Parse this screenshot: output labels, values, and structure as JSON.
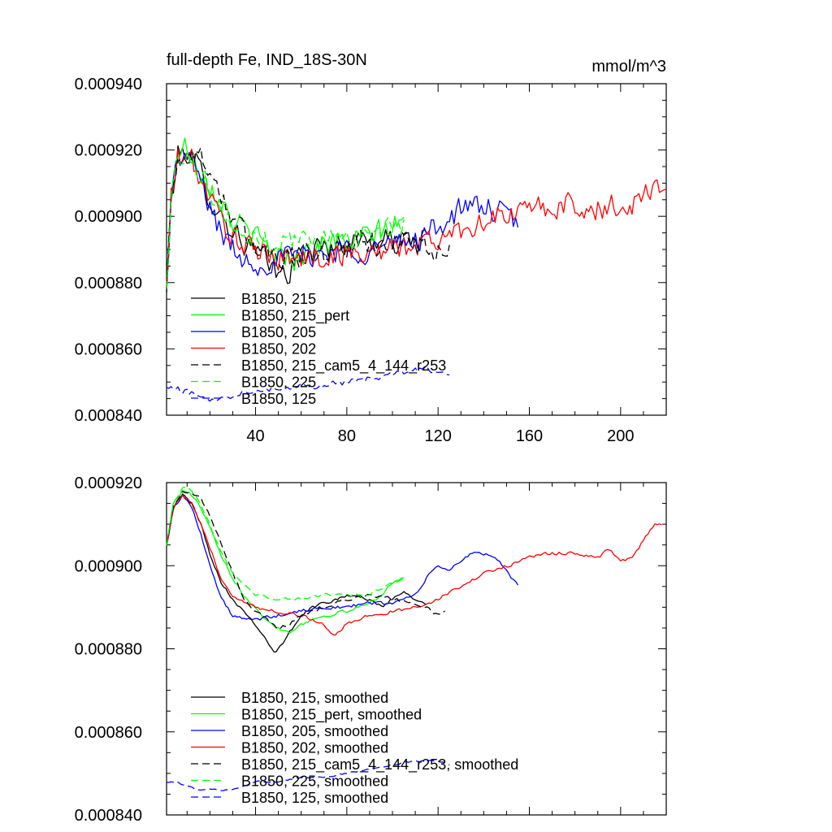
{
  "page": {
    "title": "full-depth Fe, IND_18S-30N",
    "units": "mmol/m^3"
  },
  "chart_data": [
    {
      "type": "line",
      "title": "full-depth Fe, IND_18S-30N",
      "units": "mmol/m^3",
      "xlabel": "",
      "ylabel": "",
      "xlim": [
        1,
        220
      ],
      "ylim": [
        0.00084,
        0.00094
      ],
      "xticks": [
        40,
        80,
        120,
        160,
        200
      ],
      "xtick_labels": [
        "40",
        "80",
        "120",
        "160",
        "200"
      ],
      "yticks": [
        0.00084,
        0.00086,
        0.00088,
        0.0009,
        0.00092,
        0.00094
      ],
      "ytick_labels": [
        "0.000840",
        "0.000860",
        "0.000880",
        "0.000900",
        "0.000920",
        "0.000940"
      ],
      "legend_position": "bottom-left",
      "series": [
        {
          "name": "B1850, 215",
          "color": "#000000",
          "dash": "solid",
          "noise": 3.5e-06,
          "x": [
            1,
            3,
            6,
            9,
            12,
            16,
            20,
            25,
            30,
            35,
            40,
            45,
            50,
            55,
            60,
            70,
            80,
            90,
            100,
            110,
            115
          ],
          "y": [
            0.000876,
            0.000905,
            0.000918,
            0.00092,
            0.000918,
            0.000913,
            0.000906,
            0.0009,
            0.000896,
            0.000892,
            0.000889,
            0.000886,
            0.000882,
            0.000884,
            0.000888,
            0.000891,
            0.000892,
            0.000893,
            0.000892,
            0.000893,
            0.000894
          ]
        },
        {
          "name": "B1850, 215_pert",
          "color": "#00ff00",
          "dash": "solid",
          "noise": 3.5e-06,
          "x": [
            1,
            3,
            6,
            9,
            12,
            16,
            20,
            25,
            30,
            35,
            40,
            45,
            50,
            55,
            60,
            70,
            80,
            90,
            100,
            105
          ],
          "y": [
            0.000877,
            0.000906,
            0.000919,
            0.000921,
            0.000919,
            0.000915,
            0.00091,
            0.000905,
            0.000899,
            0.000896,
            0.000893,
            0.000891,
            0.000889,
            0.000887,
            0.000889,
            0.000892,
            0.000892,
            0.000894,
            0.000897,
            0.000898
          ]
        },
        {
          "name": "B1850, 205",
          "color": "#0000ff",
          "dash": "solid",
          "noise": 3.5e-06,
          "x": [
            1,
            3,
            6,
            9,
            12,
            16,
            20,
            25,
            30,
            35,
            40,
            50,
            60,
            70,
            80,
            90,
            100,
            110,
            120,
            130,
            140,
            150,
            155
          ],
          "y": [
            0.000877,
            0.000906,
            0.000917,
            0.000918,
            0.000916,
            0.000911,
            0.000903,
            0.000895,
            0.00089,
            0.000887,
            0.000886,
            0.000887,
            0.000888,
            0.000889,
            0.00089,
            0.00089,
            0.000891,
            0.000893,
            0.000897,
            0.000902,
            0.000903,
            0.0009,
            0.000897
          ]
        },
        {
          "name": "B1850, 202",
          "color": "#ff0000",
          "dash": "solid",
          "noise": 3.5e-06,
          "x": [
            1,
            3,
            6,
            9,
            12,
            16,
            20,
            25,
            30,
            35,
            40,
            50,
            60,
            70,
            80,
            90,
            100,
            110,
            120,
            130,
            140,
            150,
            160,
            170,
            180,
            190,
            200,
            205,
            210,
            215,
            220
          ],
          "y": [
            0.000877,
            0.000906,
            0.000917,
            0.000918,
            0.000917,
            0.000911,
            0.000905,
            0.000899,
            0.000894,
            0.000891,
            0.000889,
            0.000888,
            0.000887,
            0.000888,
            0.000889,
            0.000889,
            0.00089,
            0.000891,
            0.000893,
            0.000896,
            0.000899,
            0.0009,
            0.000902,
            0.000903,
            0.000903,
            0.000902,
            0.000903,
            0.000904,
            0.000907,
            0.000909,
            0.00091
          ]
        },
        {
          "name": "B1850, 215_cam5_4_144_r253",
          "color": "#000000",
          "dash": "dashed",
          "noise": 3.5e-06,
          "x": [
            1,
            3,
            6,
            9,
            12,
            16,
            20,
            25,
            30,
            35,
            40,
            50,
            60,
            70,
            80,
            90,
            100,
            110,
            115,
            120,
            125
          ],
          "y": [
            0.000877,
            0.000906,
            0.000918,
            0.000919,
            0.000919,
            0.000918,
            0.000914,
            0.000907,
            0.000899,
            0.000894,
            0.000891,
            0.000889,
            0.000888,
            0.000889,
            0.000891,
            0.000892,
            0.000892,
            0.000892,
            0.000891,
            0.000889,
            0.000888
          ]
        },
        {
          "name": "B1850, 225",
          "color": "#00ff00",
          "dash": "dashed",
          "noise": 3e-06,
          "x": [
            1,
            3,
            6,
            9,
            12,
            16,
            20,
            25,
            30,
            35,
            40,
            50,
            60,
            70,
            80,
            90,
            100,
            105
          ],
          "y": [
            0.000877,
            0.000906,
            0.000918,
            0.000919,
            0.000918,
            0.000914,
            0.000908,
            0.000902,
            0.000897,
            0.000894,
            0.000893,
            0.000893,
            0.000893,
            0.000894,
            0.000894,
            0.000894,
            0.000896,
            0.000897
          ]
        },
        {
          "name": "B1850, 125",
          "color": "#0000ff",
          "dash": "dashed",
          "noise": 8e-07,
          "x": [
            1,
            5,
            10,
            15,
            20,
            25,
            30,
            35,
            40,
            50,
            60,
            70,
            80,
            90,
            100,
            110,
            115,
            120,
            125
          ],
          "y": [
            0.000848,
            0.000848,
            0.000847,
            0.000846,
            0.000845,
            0.000845,
            0.000846,
            0.000847,
            0.000848,
            0.000848,
            0.000849,
            0.000849,
            0.00085,
            0.000851,
            0.000852,
            0.000854,
            0.000854,
            0.000853,
            0.000852
          ]
        }
      ]
    },
    {
      "type": "line",
      "title": "",
      "xlabel": "",
      "ylabel": "",
      "xlim": [
        1,
        220
      ],
      "ylim": [
        0.00084,
        0.00092
      ],
      "xticks": [
        40,
        80,
        120,
        160,
        200
      ],
      "xtick_labels": [],
      "yticks": [
        0.00084,
        0.00086,
        0.00088,
        0.0009,
        0.00092
      ],
      "ytick_labels": [
        "0.000840",
        "0.000860",
        "0.000880",
        "0.000900",
        "0.000920"
      ],
      "legend_position": "bottom-left",
      "series": [
        {
          "name": "B1850, 215, smoothed",
          "color": "#000000",
          "dash": "solid",
          "noise": 4e-07,
          "x": [
            1,
            4,
            8,
            12,
            16,
            20,
            25,
            30,
            35,
            40,
            45,
            48,
            52,
            55,
            60,
            65,
            70,
            80,
            90,
            95,
            100,
            105,
            110,
            115
          ],
          "y": [
            0.000905,
            0.000914,
            0.000917,
            0.000915,
            0.00091,
            0.000903,
            0.000896,
            0.000892,
            0.000889,
            0.000886,
            0.000882,
            0.000879,
            0.000881,
            0.000884,
            0.000888,
            0.00089,
            0.000891,
            0.000893,
            0.000892,
            0.00089,
            0.000892,
            0.000894,
            0.000892,
            0.000891
          ]
        },
        {
          "name": "B1850, 215_pert, smoothed",
          "color": "#00ff00",
          "dash": "solid",
          "noise": 4e-07,
          "x": [
            1,
            4,
            8,
            12,
            16,
            20,
            25,
            30,
            35,
            40,
            45,
            50,
            55,
            60,
            65,
            70,
            80,
            90,
            95,
            100,
            105
          ],
          "y": [
            0.000905,
            0.000915,
            0.000918,
            0.000917,
            0.000914,
            0.000909,
            0.000902,
            0.000897,
            0.000893,
            0.00089,
            0.000887,
            0.000885,
            0.000884,
            0.000886,
            0.000887,
            0.000888,
            0.000889,
            0.000891,
            0.000893,
            0.000896,
            0.000897
          ]
        },
        {
          "name": "B1850, 205, smoothed",
          "color": "#0000ff",
          "dash": "solid",
          "noise": 4e-07,
          "x": [
            1,
            4,
            8,
            12,
            16,
            20,
            25,
            30,
            35,
            40,
            50,
            60,
            70,
            80,
            90,
            100,
            110,
            115,
            120,
            125,
            130,
            135,
            140,
            145,
            150,
            155
          ],
          "y": [
            0.000905,
            0.000914,
            0.000917,
            0.000914,
            0.000908,
            0.0009,
            0.000892,
            0.000888,
            0.000887,
            0.000887,
            0.000888,
            0.000889,
            0.00089,
            0.00089,
            0.000891,
            0.000891,
            0.000893,
            0.000897,
            0.0009,
            0.000899,
            0.000901,
            0.000903,
            0.000903,
            0.000902,
            0.000899,
            0.000895
          ]
        },
        {
          "name": "B1850, 202, smoothed",
          "color": "#ff0000",
          "dash": "solid",
          "noise": 4e-07,
          "x": [
            1,
            4,
            8,
            12,
            16,
            20,
            25,
            30,
            35,
            40,
            50,
            60,
            70,
            75,
            80,
            90,
            100,
            110,
            120,
            130,
            140,
            150,
            160,
            170,
            180,
            190,
            195,
            200,
            205,
            210,
            215,
            218
          ],
          "y": [
            0.000905,
            0.000914,
            0.000917,
            0.000915,
            0.00091,
            0.000904,
            0.000897,
            0.000893,
            0.000891,
            0.00089,
            0.000889,
            0.000888,
            0.000886,
            0.000883,
            0.000886,
            0.000888,
            0.000889,
            0.00089,
            0.000892,
            0.000895,
            0.000898,
            0.0009,
            0.000902,
            0.000903,
            0.000903,
            0.000902,
            0.000904,
            0.000901,
            0.000902,
            0.000906,
            0.00091,
            0.00091
          ]
        },
        {
          "name": "B1850, 215_cam5_4_144_r253, smoothed",
          "color": "#000000",
          "dash": "dashed",
          "noise": 4e-07,
          "x": [
            1,
            4,
            8,
            12,
            16,
            20,
            25,
            30,
            35,
            40,
            45,
            50,
            55,
            60,
            65,
            70,
            80,
            90,
            100,
            110,
            115,
            120,
            123
          ],
          "y": [
            0.000905,
            0.000914,
            0.000918,
            0.000918,
            0.000916,
            0.000912,
            0.000905,
            0.000898,
            0.000892,
            0.000889,
            0.000887,
            0.000885,
            0.000886,
            0.000888,
            0.000889,
            0.00089,
            0.000892,
            0.000893,
            0.000892,
            0.000891,
            0.00089,
            0.000888,
            0.000889
          ]
        },
        {
          "name": "B1850, 225, smoothed",
          "color": "#00ff00",
          "dash": "dashed",
          "noise": 3e-07,
          "x": [
            1,
            4,
            8,
            12,
            16,
            20,
            25,
            30,
            35,
            40,
            50,
            60,
            70,
            80,
            90,
            100,
            105
          ],
          "y": [
            0.000905,
            0.000915,
            0.000919,
            0.000918,
            0.000915,
            0.00091,
            0.000903,
            0.000898,
            0.000895,
            0.000893,
            0.000892,
            0.000892,
            0.000893,
            0.000893,
            0.000893,
            0.000896,
            0.000897
          ]
        },
        {
          "name": "B1850, 125, smoothed",
          "color": "#0000ff",
          "dash": "dashed",
          "noise": 2e-07,
          "x": [
            1,
            5,
            10,
            15,
            20,
            25,
            30,
            35,
            40,
            50,
            60,
            70,
            80,
            90,
            100,
            110,
            115,
            120,
            125
          ],
          "y": [
            0.000848,
            0.000848,
            0.000847,
            0.000846,
            0.000846,
            0.000846,
            0.000846,
            0.000847,
            0.000848,
            0.000848,
            0.000849,
            0.000849,
            0.00085,
            0.000851,
            0.000852,
            0.000853,
            0.000853,
            0.000853,
            0.000852
          ]
        }
      ]
    }
  ]
}
